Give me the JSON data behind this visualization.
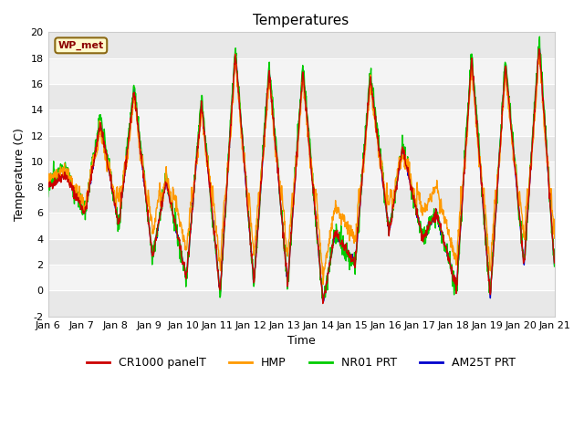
{
  "title": "Temperatures",
  "xlabel": "Time",
  "ylabel": "Temperature (C)",
  "ylim": [
    -2,
    20
  ],
  "station_label": "WP_met",
  "xtick_labels": [
    "Jan 6",
    "Jan 7",
    "Jan 8",
    "Jan 9",
    "Jan 10",
    "Jan 11",
    "Jan 12",
    "Jan 13",
    "Jan 14",
    "Jan 15",
    "Jan 16",
    "Jan 17",
    "Jan 18",
    "Jan 19",
    "Jan 20",
    "Jan 21"
  ],
  "legend_entries": [
    "CR1000 panelT",
    "HMP",
    "NR01 PRT",
    "AM25T PRT"
  ],
  "line_colors": [
    "#cc0000",
    "#ff9900",
    "#00cc00",
    "#0000cc"
  ],
  "title_fontsize": 11,
  "axis_fontsize": 9,
  "tick_fontsize": 8,
  "legend_fontsize": 9,
  "days": 15,
  "n_points": 1440
}
